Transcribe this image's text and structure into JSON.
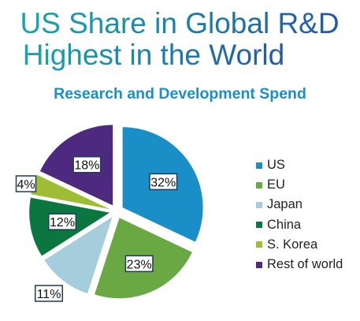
{
  "header": {
    "title_line1": "US Share in Global R&D",
    "title_line2": "Highest in the World"
  },
  "chart_data": {
    "type": "pie",
    "title": "Research and Development Spend",
    "categories": [
      "US",
      "EU",
      "Japan",
      "China",
      "S. Korea",
      "Rest of world"
    ],
    "values": [
      32,
      23,
      11,
      12,
      4,
      18
    ],
    "labels": [
      "32%",
      "23%",
      "11%",
      "12%",
      "4%",
      "18%"
    ],
    "colors": [
      "#1a8fc7",
      "#6aa843",
      "#a6cddb",
      "#0c7640",
      "#9ebd35",
      "#4d2a7f"
    ],
    "legend_position": "right",
    "exploded": true
  },
  "colors": {
    "title_gradient_start": "#16a5b0",
    "title_gradient_end": "#2360a8",
    "subtitle": "#1a8fc7",
    "label_border": "#1f3a5a"
  }
}
